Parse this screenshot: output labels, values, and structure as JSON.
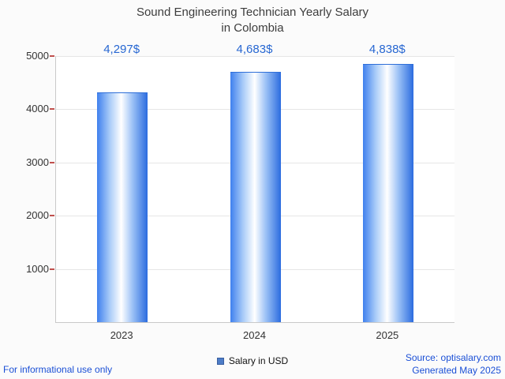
{
  "title": {
    "line1": "Sound Engineering Technician Yearly Salary",
    "line2": "in Colombia"
  },
  "chart_data": {
    "type": "bar",
    "categories": [
      "2023",
      "2024",
      "2025"
    ],
    "values": [
      4297,
      4683,
      4838
    ],
    "value_labels": [
      "4,297$",
      "4,683$",
      "4,838$"
    ],
    "series": [
      {
        "name": "Salary in USD",
        "values": [
          4297,
          4683,
          4838
        ]
      }
    ],
    "title": "Sound Engineering Technician Yearly Salary in Colombia",
    "xlabel": "",
    "ylabel": "",
    "ylim": [
      0,
      5000
    ],
    "yticks": [
      1000,
      2000,
      3000,
      4000,
      5000
    ],
    "grid": true,
    "legend_position": "bottom",
    "bar_color_edge": "#2b6cdf",
    "bar_color_center": "#ffffff",
    "value_label_color": "#2767d2"
  },
  "legend": {
    "label": "Salary in USD",
    "marker_color": "#4d7cc7"
  },
  "footer": {
    "disclaimer": "For informational use only",
    "source": "Source: optisalary.com",
    "generated": "Generated May 2025"
  }
}
